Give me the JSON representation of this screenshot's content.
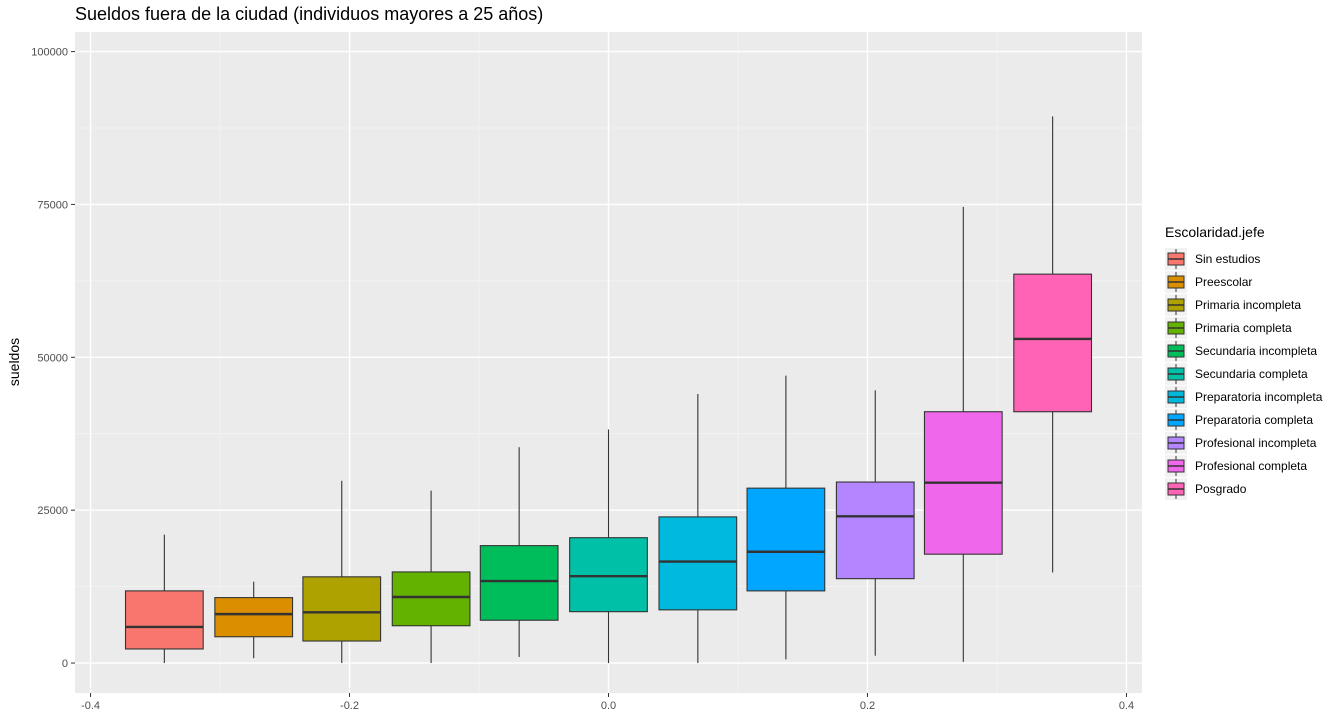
{
  "chart_data": {
    "type": "boxplot",
    "title": "Sueldos fuera de la ciudad (individuos mayores a 25 años)",
    "xlabel": "",
    "ylabel": "sueldos",
    "xlim": [
      -0.4,
      0.4
    ],
    "ylim": [
      0,
      100000
    ],
    "x_ticks": [
      "-0.4",
      "-0.2",
      "0.0",
      "0.2",
      "0.4"
    ],
    "y_ticks": [
      "0",
      "25000",
      "50000",
      "75000",
      "100000"
    ],
    "grid": true,
    "legend": {
      "title": "Escolaridad.jefe",
      "position": "right"
    },
    "series": [
      {
        "name": "Sin estudios",
        "color": "#F8766D",
        "x": -0.343,
        "min": 0,
        "q1": 2300,
        "median": 5900,
        "q3": 11800,
        "max": 21000
      },
      {
        "name": "Preescolar",
        "color": "#DB8E00",
        "x": -0.274,
        "min": 800,
        "q1": 4300,
        "median": 8000,
        "q3": 10700,
        "max": 13300
      },
      {
        "name": "Primaria incompleta",
        "color": "#AEA200",
        "x": -0.206,
        "min": 0,
        "q1": 3600,
        "median": 8300,
        "q3": 14100,
        "max": 29800
      },
      {
        "name": "Primaria completa",
        "color": "#64B200",
        "x": -0.137,
        "min": 0,
        "q1": 6100,
        "median": 10800,
        "q3": 14900,
        "max": 28200
      },
      {
        "name": "Secundaria incompleta",
        "color": "#00BD5C",
        "x": -0.069,
        "min": 1000,
        "q1": 7000,
        "median": 13400,
        "q3": 19200,
        "max": 35300
      },
      {
        "name": "Secundaria completa",
        "color": "#00C1A7",
        "x": 0.0,
        "min": 0,
        "q1": 8400,
        "median": 14200,
        "q3": 20500,
        "max": 38200
      },
      {
        "name": "Preparatoria incompleta",
        "color": "#00BADE",
        "x": 0.069,
        "min": 0,
        "q1": 8700,
        "median": 16600,
        "q3": 23900,
        "max": 44000
      },
      {
        "name": "Preparatoria completa",
        "color": "#00A6FF",
        "x": 0.137,
        "min": 600,
        "q1": 11800,
        "median": 18200,
        "q3": 28600,
        "max": 47000
      },
      {
        "name": "Profesional incompleta",
        "color": "#B385FF",
        "x": 0.206,
        "min": 1200,
        "q1": 13800,
        "median": 24000,
        "q3": 29600,
        "max": 44600
      },
      {
        "name": "Profesional completa",
        "color": "#EF67EB",
        "x": 0.274,
        "min": 200,
        "q1": 17800,
        "median": 29500,
        "q3": 41100,
        "max": 74600
      },
      {
        "name": "Posgrado",
        "color": "#FF63B6",
        "x": 0.343,
        "min": 14800,
        "q1": 41100,
        "median": 53000,
        "q3": 63600,
        "max": 89400
      }
    ]
  }
}
